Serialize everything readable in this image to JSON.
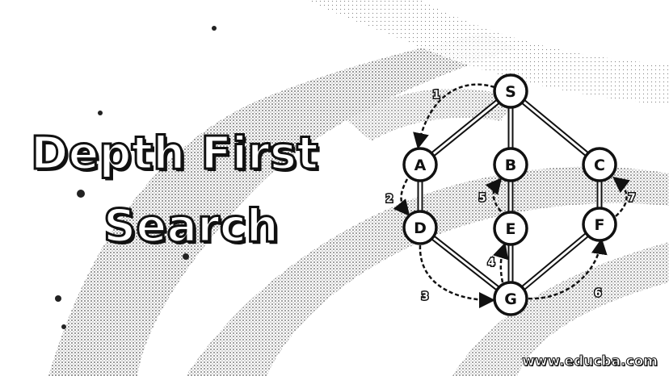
{
  "title": {
    "line1": "Depth First",
    "line2": "Search"
  },
  "watermark": "www.educba.com",
  "graph": {
    "nodes": [
      {
        "id": "S",
        "label": "S"
      },
      {
        "id": "A",
        "label": "A"
      },
      {
        "id": "B",
        "label": "B"
      },
      {
        "id": "C",
        "label": "C"
      },
      {
        "id": "D",
        "label": "D"
      },
      {
        "id": "E",
        "label": "E"
      },
      {
        "id": "F",
        "label": "F"
      },
      {
        "id": "G",
        "label": "G"
      }
    ],
    "edges": [
      [
        "S",
        "A"
      ],
      [
        "S",
        "B"
      ],
      [
        "S",
        "C"
      ],
      [
        "A",
        "D"
      ],
      [
        "B",
        "E"
      ],
      [
        "C",
        "F"
      ],
      [
        "D",
        "G"
      ],
      [
        "E",
        "G"
      ],
      [
        "F",
        "G"
      ]
    ],
    "traversal_steps": [
      {
        "step": "1",
        "from": "S",
        "to": "A"
      },
      {
        "step": "2",
        "from": "A",
        "to": "D"
      },
      {
        "step": "3",
        "from": "D",
        "to": "G"
      },
      {
        "step": "4",
        "from": "G",
        "to": "E"
      },
      {
        "step": "5",
        "from": "E",
        "to": "B"
      },
      {
        "step": "6",
        "from": "G",
        "to": "F"
      },
      {
        "step": "7",
        "from": "F",
        "to": "C"
      }
    ]
  },
  "colors": {
    "ink": "#111111",
    "paper": "#ffffff",
    "shade": "#9a9a9a"
  }
}
